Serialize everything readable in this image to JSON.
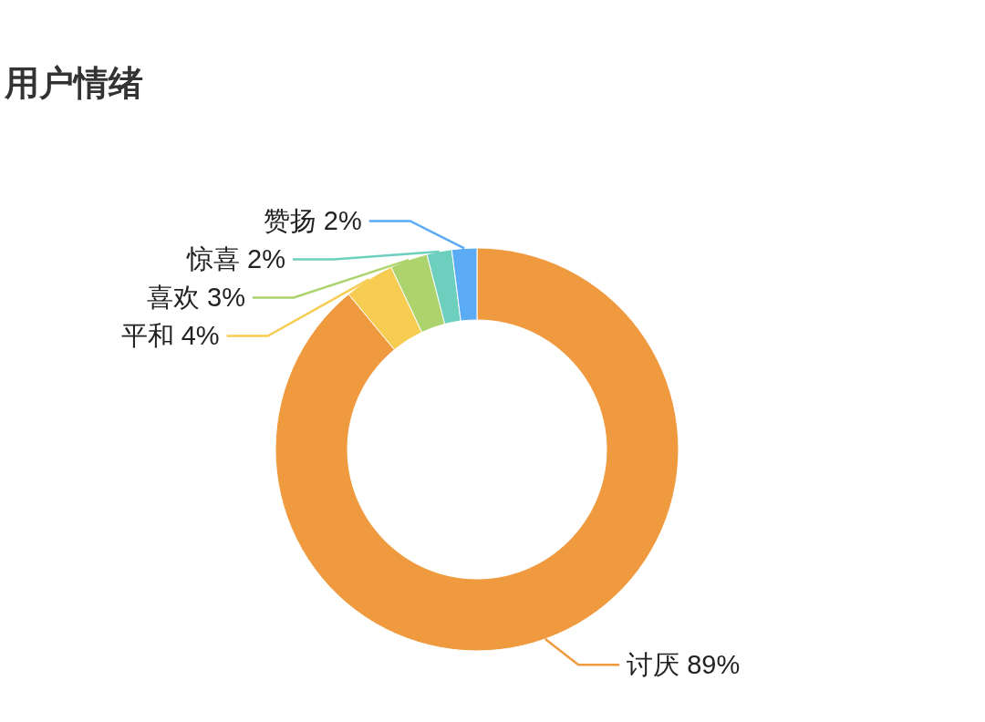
{
  "chart_data": {
    "type": "donut",
    "title": "用户情绪",
    "categories": [
      "讨厌",
      "平和",
      "喜欢",
      "惊喜",
      "赞扬"
    ],
    "values": [
      89,
      4,
      3,
      2,
      2
    ],
    "value_labels": [
      "89%",
      "4%",
      "3%",
      "2%",
      "2%"
    ],
    "colors": [
      "#f09a40",
      "#f6cd52",
      "#acd36c",
      "#6dcfbe",
      "#5cabf5"
    ]
  }
}
